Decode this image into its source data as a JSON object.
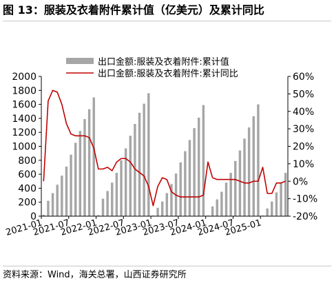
{
  "figure_title": "图 13：服装及衣着附件累计值（亿美元）及累计同比",
  "source_note": "资料来源：Wind，海关总署，山西证券研究所",
  "colors": {
    "bar": "#a6a6a6",
    "line": "#c00000",
    "axis": "#000000"
  },
  "chart_data": {
    "type": "bar",
    "x_tick_labels": [
      "2021-01",
      "2021-07",
      "2022-01",
      "2022-07",
      "2023-01",
      "2023-07",
      "2024-01",
      "2024-07",
      "2025-01"
    ],
    "categories": [
      "2021-01",
      "2021-02",
      "2021-03",
      "2021-04",
      "2021-05",
      "2021-06",
      "2021-07",
      "2021-08",
      "2021-09",
      "2021-10",
      "2021-11",
      "2021-12",
      "2022-01",
      "2022-02",
      "2022-03",
      "2022-04",
      "2022-05",
      "2022-06",
      "2022-07",
      "2022-08",
      "2022-09",
      "2022-10",
      "2022-11",
      "2022-12",
      "2023-01",
      "2023-02",
      "2023-03",
      "2023-04",
      "2023-05",
      "2023-06",
      "2023-07",
      "2023-08",
      "2023-09",
      "2023-10",
      "2023-11",
      "2023-12",
      "2024-01",
      "2024-02",
      "2024-03",
      "2024-04",
      "2024-05",
      "2024-06",
      "2024-07",
      "2024-08",
      "2024-09",
      "2024-10",
      "2024-11",
      "2024-12",
      "2025-01",
      "2025-02",
      "2025-03",
      "2025-04",
      "2025-05",
      "2025-06"
    ],
    "series": [
      {
        "name": "出口金额:服装及衣着附件:累计值",
        "type": "bar",
        "axis": "left",
        "values": [
          20,
          220,
          330,
          450,
          580,
          710,
          880,
          1050,
          1220,
          1390,
          1530,
          1700,
          15,
          250,
          360,
          480,
          620,
          800,
          970,
          1150,
          1320,
          1480,
          1610,
          1760,
          10,
          120,
          210,
          330,
          460,
          610,
          770,
          930,
          1090,
          1260,
          1410,
          1590,
          10,
          140,
          240,
          350,
          480,
          620,
          790,
          940,
          1110,
          1270,
          1430,
          1600,
          10,
          110,
          210,
          340,
          480,
          620
        ]
      },
      {
        "name": "出口金额:服装及衣着附件:累计同比",
        "type": "line",
        "axis": "right",
        "values": [
          0,
          46,
          52,
          51,
          44,
          33,
          27,
          26,
          26,
          26,
          25,
          19,
          7,
          7,
          8,
          6,
          11,
          13,
          13,
          11,
          7,
          5,
          3,
          -3,
          -14,
          -3,
          2,
          1,
          -6,
          -8,
          -9,
          -9,
          -9,
          -9,
          -9,
          -8,
          11,
          2,
          1,
          1,
          1,
          1,
          1,
          0,
          -1,
          -1,
          0,
          0,
          8,
          -7,
          -7,
          -1,
          -1,
          0
        ]
      }
    ],
    "y_left": {
      "min": 0,
      "max": 2000,
      "step": 200
    },
    "y_right": {
      "min": -20,
      "max": 60,
      "step": 10,
      "unit": "%"
    },
    "legend_position": "top-center",
    "grid": false
  }
}
